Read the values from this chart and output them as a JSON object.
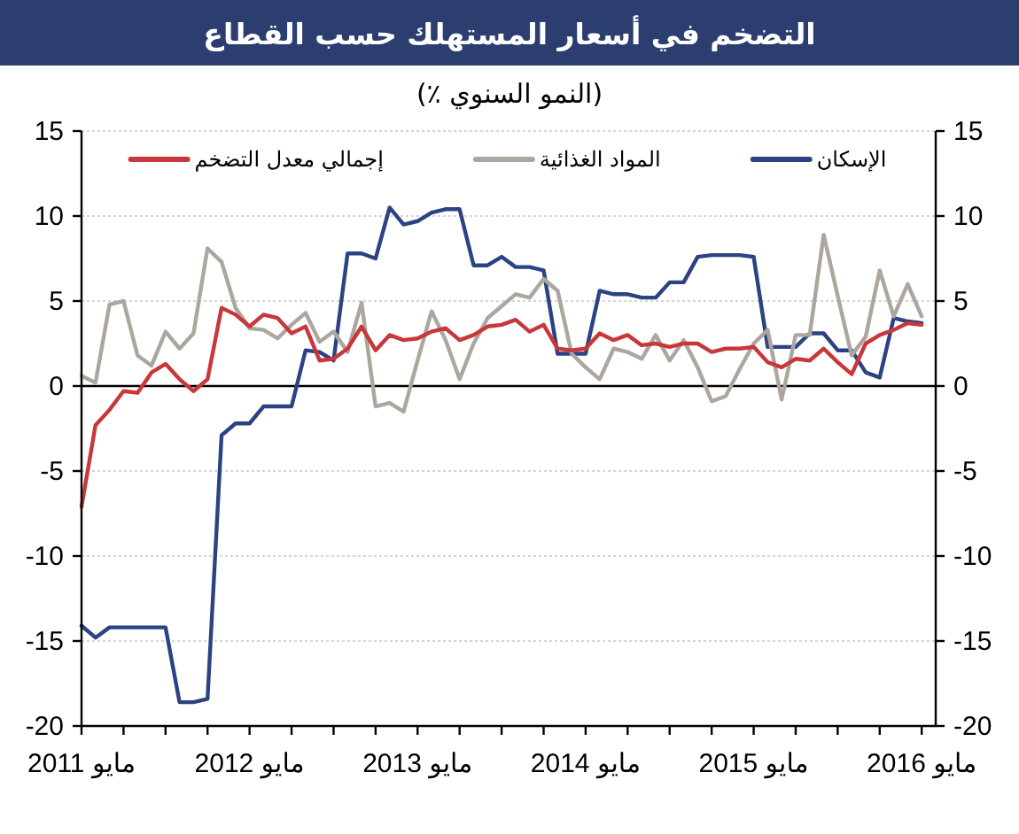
{
  "chart_data": {
    "type": "line",
    "title": "التضخم في أسعار المستهلك حسب القطاع",
    "subtitle": "(النمو السنوي ٪)",
    "x": [
      "2011-05",
      "2011-06",
      "2011-07",
      "2011-08",
      "2011-09",
      "2011-10",
      "2011-11",
      "2011-12",
      "2012-01",
      "2012-02",
      "2012-03",
      "2012-04",
      "2012-05",
      "2012-06",
      "2012-07",
      "2012-08",
      "2012-09",
      "2012-10",
      "2012-11",
      "2012-12",
      "2013-01",
      "2013-02",
      "2013-03",
      "2013-04",
      "2013-05",
      "2013-06",
      "2013-07",
      "2013-08",
      "2013-09",
      "2013-10",
      "2013-11",
      "2013-12",
      "2014-01",
      "2014-02",
      "2014-03",
      "2014-04",
      "2014-05",
      "2014-06",
      "2014-07",
      "2014-08",
      "2014-09",
      "2014-10",
      "2014-11",
      "2014-12",
      "2015-01",
      "2015-02",
      "2015-03",
      "2015-04",
      "2015-05",
      "2015-06",
      "2015-07",
      "2015-08",
      "2015-09",
      "2015-10",
      "2015-11",
      "2015-12",
      "2016-01",
      "2016-02",
      "2016-03",
      "2016-04",
      "2016-05"
    ],
    "xlim": [
      "2011-05",
      "2016-06"
    ],
    "xticks": [
      {
        "value": "2011-05",
        "label": "مايو 2011"
      },
      {
        "value": "2011-08",
        "label": null
      },
      {
        "value": "2011-11",
        "label": null
      },
      {
        "value": "2012-02",
        "label": null
      },
      {
        "value": "2012-05",
        "label": "مايو 2012"
      },
      {
        "value": "2012-08",
        "label": null
      },
      {
        "value": "2012-11",
        "label": null
      },
      {
        "value": "2013-02",
        "label": null
      },
      {
        "value": "2013-05",
        "label": "مايو 2013"
      },
      {
        "value": "2013-08",
        "label": null
      },
      {
        "value": "2013-11",
        "label": null
      },
      {
        "value": "2014-02",
        "label": null
      },
      {
        "value": "2014-05",
        "label": "مايو 2014"
      },
      {
        "value": "2014-08",
        "label": null
      },
      {
        "value": "2014-11",
        "label": null
      },
      {
        "value": "2015-02",
        "label": null
      },
      {
        "value": "2015-05",
        "label": "مايو 2015"
      },
      {
        "value": "2015-08",
        "label": null
      },
      {
        "value": "2015-11",
        "label": null
      },
      {
        "value": "2016-02",
        "label": null
      },
      {
        "value": "2016-05",
        "label": "مايو 2016"
      }
    ],
    "ylim": [
      -20,
      15
    ],
    "yticks": [
      -20,
      -15,
      -10,
      -5,
      0,
      5,
      10,
      15
    ],
    "y2lim": [
      -20,
      15
    ],
    "y2ticks": [
      -20,
      -15,
      -10,
      -5,
      0,
      5,
      10,
      15
    ],
    "grid": "y",
    "legend": "top",
    "ref_lines": [
      {
        "axis": "y",
        "value": 0,
        "color": "#000000"
      }
    ],
    "series": [
      {
        "name": "الإسكان",
        "color": "#2d4283",
        "values": [
          -14.1,
          -14.8,
          -14.2,
          -14.2,
          -14.2,
          -14.2,
          -14.2,
          -18.6,
          -18.6,
          -18.4,
          -2.9,
          -2.2,
          -2.2,
          -1.2,
          -1.2,
          -1.2,
          2.1,
          2.0,
          1.5,
          7.8,
          7.8,
          7.5,
          10.5,
          9.5,
          9.7,
          10.2,
          10.4,
          10.4,
          7.1,
          7.1,
          7.6,
          7.0,
          7.0,
          6.8,
          1.9,
          1.9,
          1.9,
          5.6,
          5.4,
          5.4,
          5.2,
          5.2,
          6.1,
          6.1,
          7.6,
          7.7,
          7.7,
          7.7,
          7.6,
          2.3,
          2.3,
          2.3,
          3.1,
          3.1,
          2.1,
          2.1,
          0.8,
          0.5,
          4.0,
          3.8,
          3.7
        ]
      },
      {
        "name": "المواد الغذائية",
        "color": "#aca69f",
        "values": [
          0.6,
          0.2,
          4.8,
          5.0,
          1.8,
          1.2,
          3.2,
          2.2,
          3.1,
          8.1,
          7.3,
          4.6,
          3.4,
          3.3,
          2.8,
          3.6,
          4.3,
          2.6,
          3.2,
          2.0,
          4.9,
          -1.2,
          -1.0,
          -1.5,
          1.5,
          4.4,
          2.7,
          0.4,
          2.5,
          4.0,
          4.7,
          5.4,
          5.2,
          6.3,
          5.6,
          1.9,
          1.1,
          0.4,
          2.2,
          2.0,
          1.6,
          3.0,
          1.5,
          2.7,
          1.1,
          -0.9,
          -0.6,
          1.0,
          2.5,
          3.3,
          -0.8,
          3.0,
          3.0,
          8.9,
          5.3,
          1.8,
          2.9,
          6.8,
          4.1,
          6.0,
          4.1
        ]
      },
      {
        "name": "إجمالي معدل التضخم",
        "color": "#c8373a",
        "values": [
          -7.1,
          -2.3,
          -1.4,
          -0.3,
          -0.4,
          0.8,
          1.3,
          0.4,
          -0.3,
          0.4,
          4.6,
          4.2,
          3.5,
          4.2,
          4.0,
          3.1,
          3.5,
          1.5,
          1.6,
          2.2,
          3.5,
          2.1,
          3.0,
          2.7,
          2.8,
          3.2,
          3.4,
          2.7,
          3.0,
          3.5,
          3.6,
          3.9,
          3.2,
          3.6,
          2.2,
          2.1,
          2.2,
          3.1,
          2.7,
          3.0,
          2.4,
          2.5,
          2.3,
          2.5,
          2.5,
          2.0,
          2.2,
          2.2,
          2.3,
          1.4,
          1.1,
          1.6,
          1.5,
          2.2,
          1.4,
          0.7,
          2.5,
          3.0,
          3.3,
          3.7,
          3.6
        ]
      }
    ]
  }
}
